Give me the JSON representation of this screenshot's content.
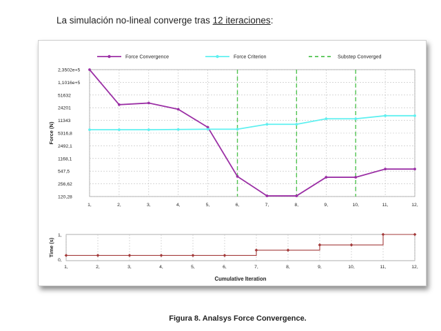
{
  "intro": {
    "text_before": "La simulación no-lineal converge tras ",
    "text_underlined": "12 iteraciones",
    "text_after": ":"
  },
  "caption": "Figura 8. Analsys Force Convergence.",
  "colors": {
    "force_convergence": "#9b2fa5",
    "force_criterion": "#5ef0f0",
    "substep_converged": "#4fc24f",
    "time": "#a33a3a",
    "grid": "#bdbdbd"
  },
  "chart_data": [
    {
      "type": "line",
      "xlabel": "",
      "ylabel": "Force (N)",
      "y_scale": "log",
      "ylim": [
        120.28,
        235020
      ],
      "legend_placement": "top",
      "grid": true,
      "x_tick_labels": [
        "1,",
        "2,",
        "3,",
        "4,",
        "5,",
        "6,",
        "7,",
        "8,",
        "9,",
        "10,",
        "11,",
        "12,"
      ],
      "y_tick_labels": [
        "2,3502e+5",
        "1,1016e+5",
        "51632",
        "24201",
        "11343",
        "5316,8",
        "2492,1",
        "1168,1",
        "547,5",
        "256,62",
        "120,28"
      ],
      "y_tick_values": [
        235020,
        110160,
        51632,
        24201,
        11343,
        5316.8,
        2492.1,
        1168.1,
        547.5,
        256.62,
        120.28
      ],
      "x": [
        1,
        2,
        3,
        4,
        5,
        6,
        7,
        8,
        9,
        10,
        11,
        12
      ],
      "series": [
        {
          "name": "Force Convergence",
          "values": [
            235020,
            29000,
            32000,
            22000,
            7500,
            400,
            125,
            125,
            380,
            380,
            620,
            620
          ]
        },
        {
          "name": "Force Criterion",
          "values": [
            6500,
            6500,
            6500,
            6600,
            6700,
            6700,
            9000,
            9000,
            12500,
            12500,
            15000,
            15000
          ]
        }
      ],
      "vertical_markers": {
        "name": "Substep Converged",
        "x": [
          6,
          8,
          10
        ]
      }
    },
    {
      "type": "line",
      "xlabel": "Cumulative Iteration",
      "ylabel": "Time (s)",
      "ylim": [
        0,
        1
      ],
      "grid": true,
      "x_tick_labels": [
        "1,",
        "2,",
        "3,",
        "4,",
        "5,",
        "6,",
        "7,",
        "8,",
        "9,",
        "10,",
        "11,",
        "12,"
      ],
      "y_tick_labels": [
        "1,",
        "0,"
      ],
      "x": [
        1,
        2,
        3,
        4,
        5,
        6,
        7,
        8,
        9,
        10,
        11,
        12
      ],
      "series": [
        {
          "name": "Time",
          "values": [
            0.2,
            0.2,
            0.2,
            0.2,
            0.2,
            0.2,
            0.4,
            0.4,
            0.6,
            0.6,
            1,
            1
          ]
        }
      ]
    }
  ]
}
